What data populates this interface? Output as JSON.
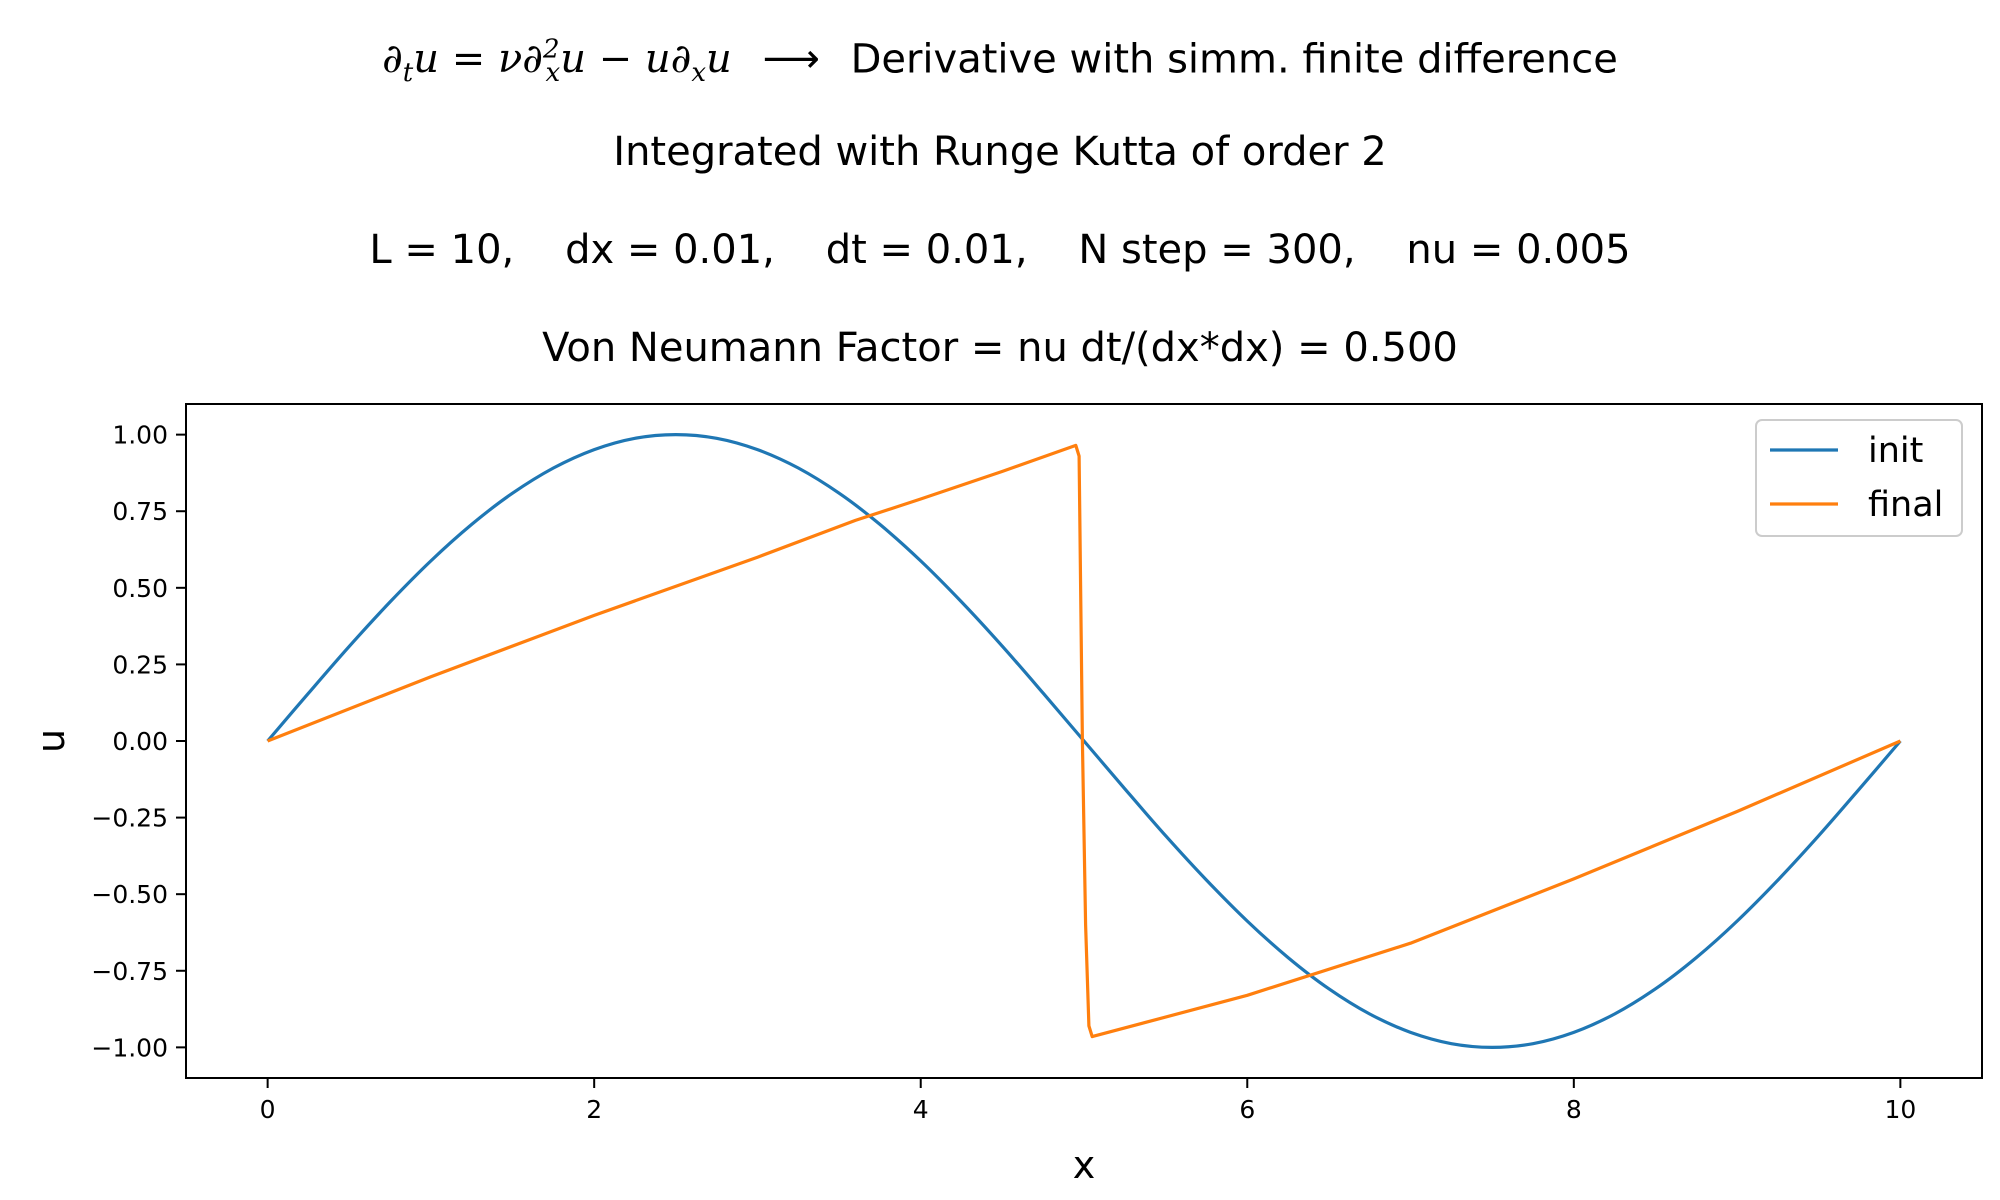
{
  "titles": {
    "line1": {
      "equation_parts": [
        "∂",
        "t",
        "u",
        " = ν∂",
        "2",
        "x",
        "u",
        " − u∂",
        "x",
        "u"
      ],
      "arrow": "⟶",
      "text": "Derivative with simm. finite difference"
    },
    "line2": "Integrated with Runge Kutta of order 2",
    "line3": "L = 10,    dx = 0.01,    dt = 0.01,    N step = 300,    nu = 0.005",
    "line4": "Von Neumann Factor = nu dt/(dx*dx) = 0.500"
  },
  "chart_data": {
    "type": "line",
    "xlabel": "x",
    "ylabel": "u",
    "xlim": [
      -0.5,
      10.5
    ],
    "ylim": [
      -1.1,
      1.1
    ],
    "xticks": [
      0,
      2,
      4,
      6,
      8,
      10
    ],
    "xtick_labels": [
      "0",
      "2",
      "4",
      "6",
      "8",
      "10"
    ],
    "yticks": [
      1.0,
      0.75,
      0.5,
      0.25,
      0.0,
      -0.25,
      -0.5,
      -0.75,
      -1.0
    ],
    "ytick_labels": [
      "1.00",
      "0.75",
      "0.50",
      "0.25",
      "0.00",
      "−0.25",
      "−0.50",
      "−0.75",
      "−1.00"
    ],
    "grid": false,
    "legend_position": "top-right",
    "series": [
      {
        "name": "init",
        "color": "#1f77b4",
        "x": [
          0,
          0.25,
          0.5,
          0.75,
          1.0,
          1.25,
          1.5,
          1.75,
          2.0,
          2.25,
          2.5,
          2.75,
          3.0,
          3.25,
          3.5,
          3.75,
          4.0,
          4.25,
          4.5,
          4.75,
          5.0,
          5.25,
          5.5,
          5.75,
          6.0,
          6.25,
          6.5,
          6.75,
          7.0,
          7.25,
          7.5,
          7.75,
          8.0,
          8.25,
          8.5,
          8.75,
          9.0,
          9.25,
          9.5,
          9.75,
          10.0
        ],
        "y": [
          0.0,
          0.156,
          0.309,
          0.454,
          0.588,
          0.707,
          0.809,
          0.891,
          0.951,
          0.988,
          1.0,
          0.988,
          0.951,
          0.891,
          0.809,
          0.707,
          0.588,
          0.454,
          0.309,
          0.156,
          0.0,
          -0.156,
          -0.309,
          -0.454,
          -0.588,
          -0.707,
          -0.809,
          -0.891,
          -0.951,
          -0.988,
          -1.0,
          -0.988,
          -0.951,
          -0.891,
          -0.809,
          -0.707,
          -0.588,
          -0.454,
          -0.309,
          -0.156,
          0.0
        ]
      },
      {
        "name": "final",
        "color": "#ff7f0e",
        "x": [
          0,
          1.0,
          2.0,
          3.0,
          3.6,
          4.0,
          4.5,
          4.95,
          4.97,
          4.99,
          5.0,
          5.01,
          5.03,
          5.05,
          6.0,
          7.0,
          8.0,
          9.0,
          10.0
        ],
        "y": [
          0.0,
          0.21,
          0.41,
          0.6,
          0.72,
          0.79,
          0.88,
          0.965,
          0.93,
          0.0,
          -0.3,
          -0.6,
          -0.93,
          -0.965,
          -0.83,
          -0.66,
          -0.45,
          -0.23,
          0.0
        ]
      }
    ]
  }
}
